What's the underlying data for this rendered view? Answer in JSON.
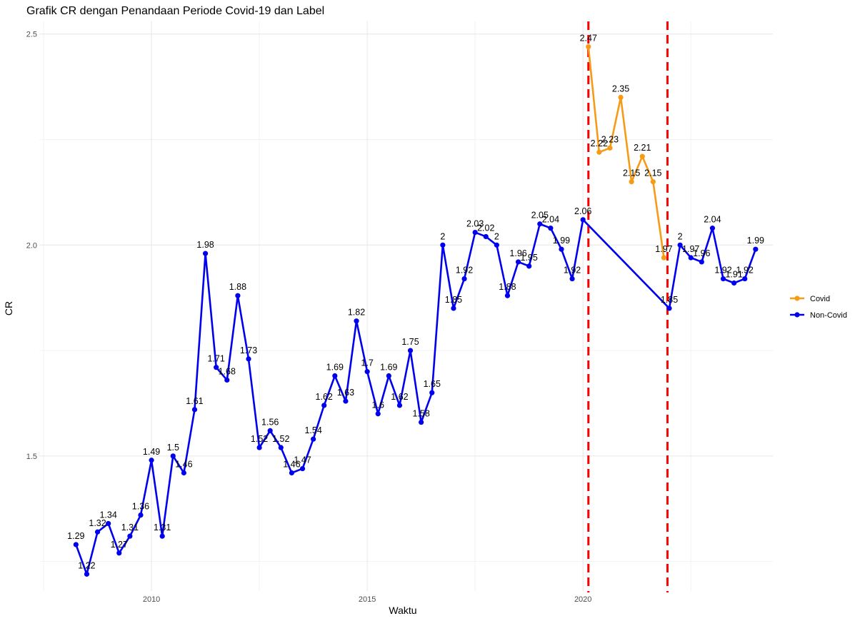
{
  "chart_data": {
    "type": "line",
    "title": "Grafik CR dengan Penandaan Periode Covid-19 dan Label",
    "xlabel": "Waktu",
    "ylabel": "CR",
    "xlim": [
      2007.4,
      2024.4
    ],
    "ylim": [
      1.18,
      2.53
    ],
    "x_ticks": [
      2010,
      2015,
      2020
    ],
    "y_ticks": [
      1.5,
      2.0,
      2.5
    ],
    "y_tick_labels": [
      "1.5",
      "2.0",
      "2.5"
    ],
    "grid": true,
    "legend_position": "right",
    "covid_period_lines": [
      2020.125,
      2021.958
    ],
    "series": [
      {
        "name": "Covid",
        "color": "#f59b16",
        "x": [
          2020.125,
          2020.375,
          2020.625,
          2020.875,
          2021.125,
          2021.375,
          2021.625,
          2021.875
        ],
        "values": [
          2.47,
          2.22,
          2.23,
          2.35,
          2.15,
          2.21,
          2.15,
          1.97
        ],
        "labels": [
          "2.47",
          "2.22",
          "2.23",
          "2.35",
          "2.15",
          "2.21",
          "2.15",
          "1.97"
        ]
      },
      {
        "name": "Non-Covid",
        "color": "#0000ee",
        "x": [
          2008.25,
          2008.5,
          2008.75,
          2009.0,
          2009.25,
          2009.5,
          2009.75,
          2010.0,
          2010.25,
          2010.5,
          2010.75,
          2011.0,
          2011.25,
          2011.5,
          2011.75,
          2012.0,
          2012.25,
          2012.5,
          2012.75,
          2013.0,
          2013.25,
          2013.5,
          2013.75,
          2014.0,
          2014.25,
          2014.5,
          2014.75,
          2015.0,
          2015.25,
          2015.5,
          2015.75,
          2016.0,
          2016.25,
          2016.5,
          2016.75,
          2017.0,
          2017.25,
          2017.5,
          2017.75,
          2018.0,
          2018.25,
          2018.5,
          2018.75,
          2019.0,
          2019.25,
          2019.5,
          2019.75,
          2020.0,
          2022.0,
          2022.25,
          2022.5,
          2022.75,
          2023.0,
          2023.25,
          2023.5,
          2023.75,
          2024.0
        ],
        "values": [
          1.29,
          1.22,
          1.32,
          1.34,
          1.27,
          1.31,
          1.36,
          1.49,
          1.31,
          1.5,
          1.46,
          1.61,
          1.98,
          1.71,
          1.68,
          1.88,
          1.73,
          1.52,
          1.56,
          1.52,
          1.46,
          1.47,
          1.54,
          1.62,
          1.69,
          1.63,
          1.82,
          1.7,
          1.6,
          1.69,
          1.62,
          1.75,
          1.58,
          1.65,
          2.0,
          1.85,
          1.92,
          2.03,
          2.02,
          2.0,
          1.88,
          1.96,
          1.95,
          2.05,
          2.04,
          1.99,
          1.92,
          2.06,
          1.85,
          2.0,
          1.97,
          1.96,
          2.04,
          1.92,
          1.91,
          1.92,
          1.99
        ],
        "labels": [
          "1.29",
          "1.22",
          "1.32",
          "1.34",
          "1.27",
          "1.31",
          "1.36",
          "1.49",
          "1.31",
          "1.5",
          "1.46",
          "1.61",
          "1.98",
          "1.71",
          "1.68",
          "1.88",
          "1.73",
          "1.52",
          "1.56",
          "1.52",
          "1.46",
          "1.47",
          "1.54",
          "1.62",
          "1.69",
          "1.63",
          "1.82",
          "1.7",
          "1.6",
          "1.69",
          "1.62",
          "1.75",
          "1.58",
          "1.65",
          "2",
          "1.85",
          "1.92",
          "2.03",
          "2.02",
          "2",
          "1.88",
          "1.96",
          "1.95",
          "2.05",
          "2.04",
          "1.99",
          "1.92",
          "2.06",
          "1.85",
          "2",
          "1.97",
          "1.96",
          "2.04",
          "1.92",
          "1.91",
          "1.92",
          "1.99"
        ]
      }
    ]
  }
}
